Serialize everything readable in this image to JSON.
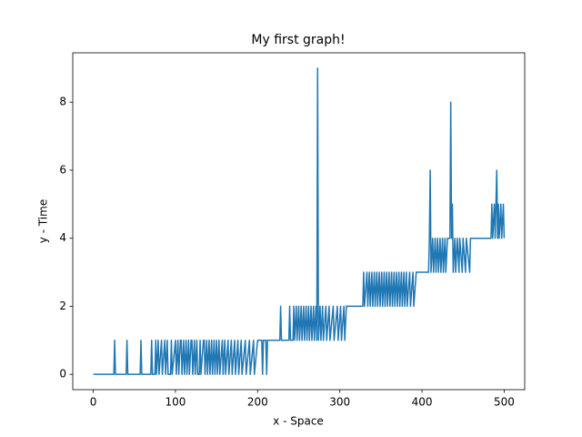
{
  "chart_data": {
    "type": "line",
    "title": "My first graph!",
    "x_label": "x - Space",
    "y_label": "y - Time",
    "x": [
      0,
      25,
      26,
      27,
      40,
      41,
      42,
      57,
      58,
      59,
      70,
      71,
      72,
      75,
      76,
      77,
      79,
      80,
      83,
      84,
      87,
      88,
      90,
      91,
      94,
      95,
      96,
      100,
      101,
      103,
      104,
      106,
      107,
      108,
      110,
      111,
      113,
      114,
      116,
      117,
      119,
      120,
      121,
      123,
      124,
      126,
      127,
      129,
      130,
      131,
      134,
      135,
      136,
      138,
      139,
      141,
      142,
      144,
      145,
      147,
      148,
      150,
      151,
      153,
      154,
      157,
      158,
      160,
      161,
      164,
      165,
      168,
      169,
      172,
      173,
      176,
      177,
      180,
      181,
      185,
      186,
      190,
      191,
      195,
      196,
      200,
      205,
      206,
      207,
      210,
      211,
      212,
      227,
      228,
      229,
      238,
      239,
      240,
      243,
      244,
      245,
      247,
      248,
      250,
      251,
      253,
      254,
      256,
      257,
      259,
      260,
      262,
      263,
      265,
      266,
      268,
      269,
      271,
      272,
      273,
      274,
      276,
      277,
      279,
      280,
      283,
      284,
      287,
      288,
      292,
      293,
      297,
      298,
      301,
      302,
      305,
      306,
      308,
      328,
      329,
      330,
      333,
      334,
      336,
      337,
      339,
      340,
      342,
      343,
      345,
      346,
      348,
      349,
      351,
      352,
      354,
      355,
      357,
      358,
      360,
      361,
      363,
      364,
      366,
      367,
      369,
      370,
      372,
      373,
      375,
      376,
      378,
      379,
      381,
      382,
      385,
      386,
      389,
      390,
      393,
      408,
      409,
      410,
      411,
      413,
      414,
      416,
      417,
      419,
      420,
      422,
      423,
      425,
      426,
      428,
      429,
      431,
      434,
      435,
      436,
      437,
      438,
      440,
      441,
      443,
      445,
      446,
      449,
      450,
      453,
      454,
      458,
      459,
      484,
      485,
      486,
      488,
      489,
      491,
      492,
      493,
      494,
      496,
      497,
      499,
      500
    ],
    "series": [
      {
        "color": "#1f77b4",
        "values": [
          0,
          0,
          1,
          0,
          0,
          1,
          0,
          0,
          1,
          0,
          0,
          1,
          0,
          0,
          1,
          0,
          1,
          0,
          1,
          0,
          1,
          0,
          1,
          0,
          0,
          1,
          0,
          1,
          0,
          1,
          0,
          1,
          1,
          0,
          1,
          0,
          1,
          0,
          1,
          0,
          1,
          1,
          0,
          1,
          0,
          1,
          0,
          0,
          1,
          0,
          1,
          1,
          0,
          1,
          0,
          1,
          0,
          1,
          0,
          1,
          0,
          1,
          0,
          1,
          0,
          1,
          0,
          1,
          0,
          1,
          0,
          1,
          0,
          1,
          0,
          1,
          0,
          1,
          0,
          1,
          0,
          1,
          0,
          1,
          0,
          1,
          1,
          0,
          1,
          1,
          0,
          1,
          1,
          2,
          1,
          1,
          2,
          1,
          1,
          2,
          1,
          2,
          1,
          2,
          1,
          2,
          1,
          2,
          1,
          2,
          1,
          2,
          1,
          2,
          1,
          2,
          1,
          2,
          1,
          9,
          1,
          2,
          1,
          2,
          1,
          2,
          1,
          2,
          1,
          2,
          1,
          2,
          1,
          2,
          1,
          2,
          1,
          2,
          2,
          3,
          2,
          3,
          2,
          3,
          2,
          3,
          2,
          3,
          2,
          3,
          2,
          3,
          2,
          3,
          2,
          3,
          2,
          3,
          2,
          3,
          2,
          3,
          2,
          3,
          2,
          3,
          2,
          3,
          2,
          3,
          2,
          3,
          2,
          3,
          2,
          3,
          2,
          3,
          2,
          3,
          3,
          4,
          6,
          3,
          4,
          3,
          4,
          3,
          4,
          3,
          4,
          3,
          4,
          3,
          4,
          3,
          4,
          4,
          8,
          4,
          5,
          3,
          4,
          3,
          4,
          3,
          4,
          3,
          4,
          3,
          4,
          3,
          4,
          4,
          5,
          4,
          5,
          4,
          6,
          4,
          5,
          4,
          5,
          4,
          5,
          4
        ]
      }
    ],
    "xlim": [
      -25,
      525
    ],
    "ylim": [
      -0.45,
      9.45
    ],
    "xticks": [
      0,
      100,
      200,
      300,
      400,
      500
    ],
    "yticks": [
      0,
      2,
      4,
      6,
      8
    ]
  }
}
